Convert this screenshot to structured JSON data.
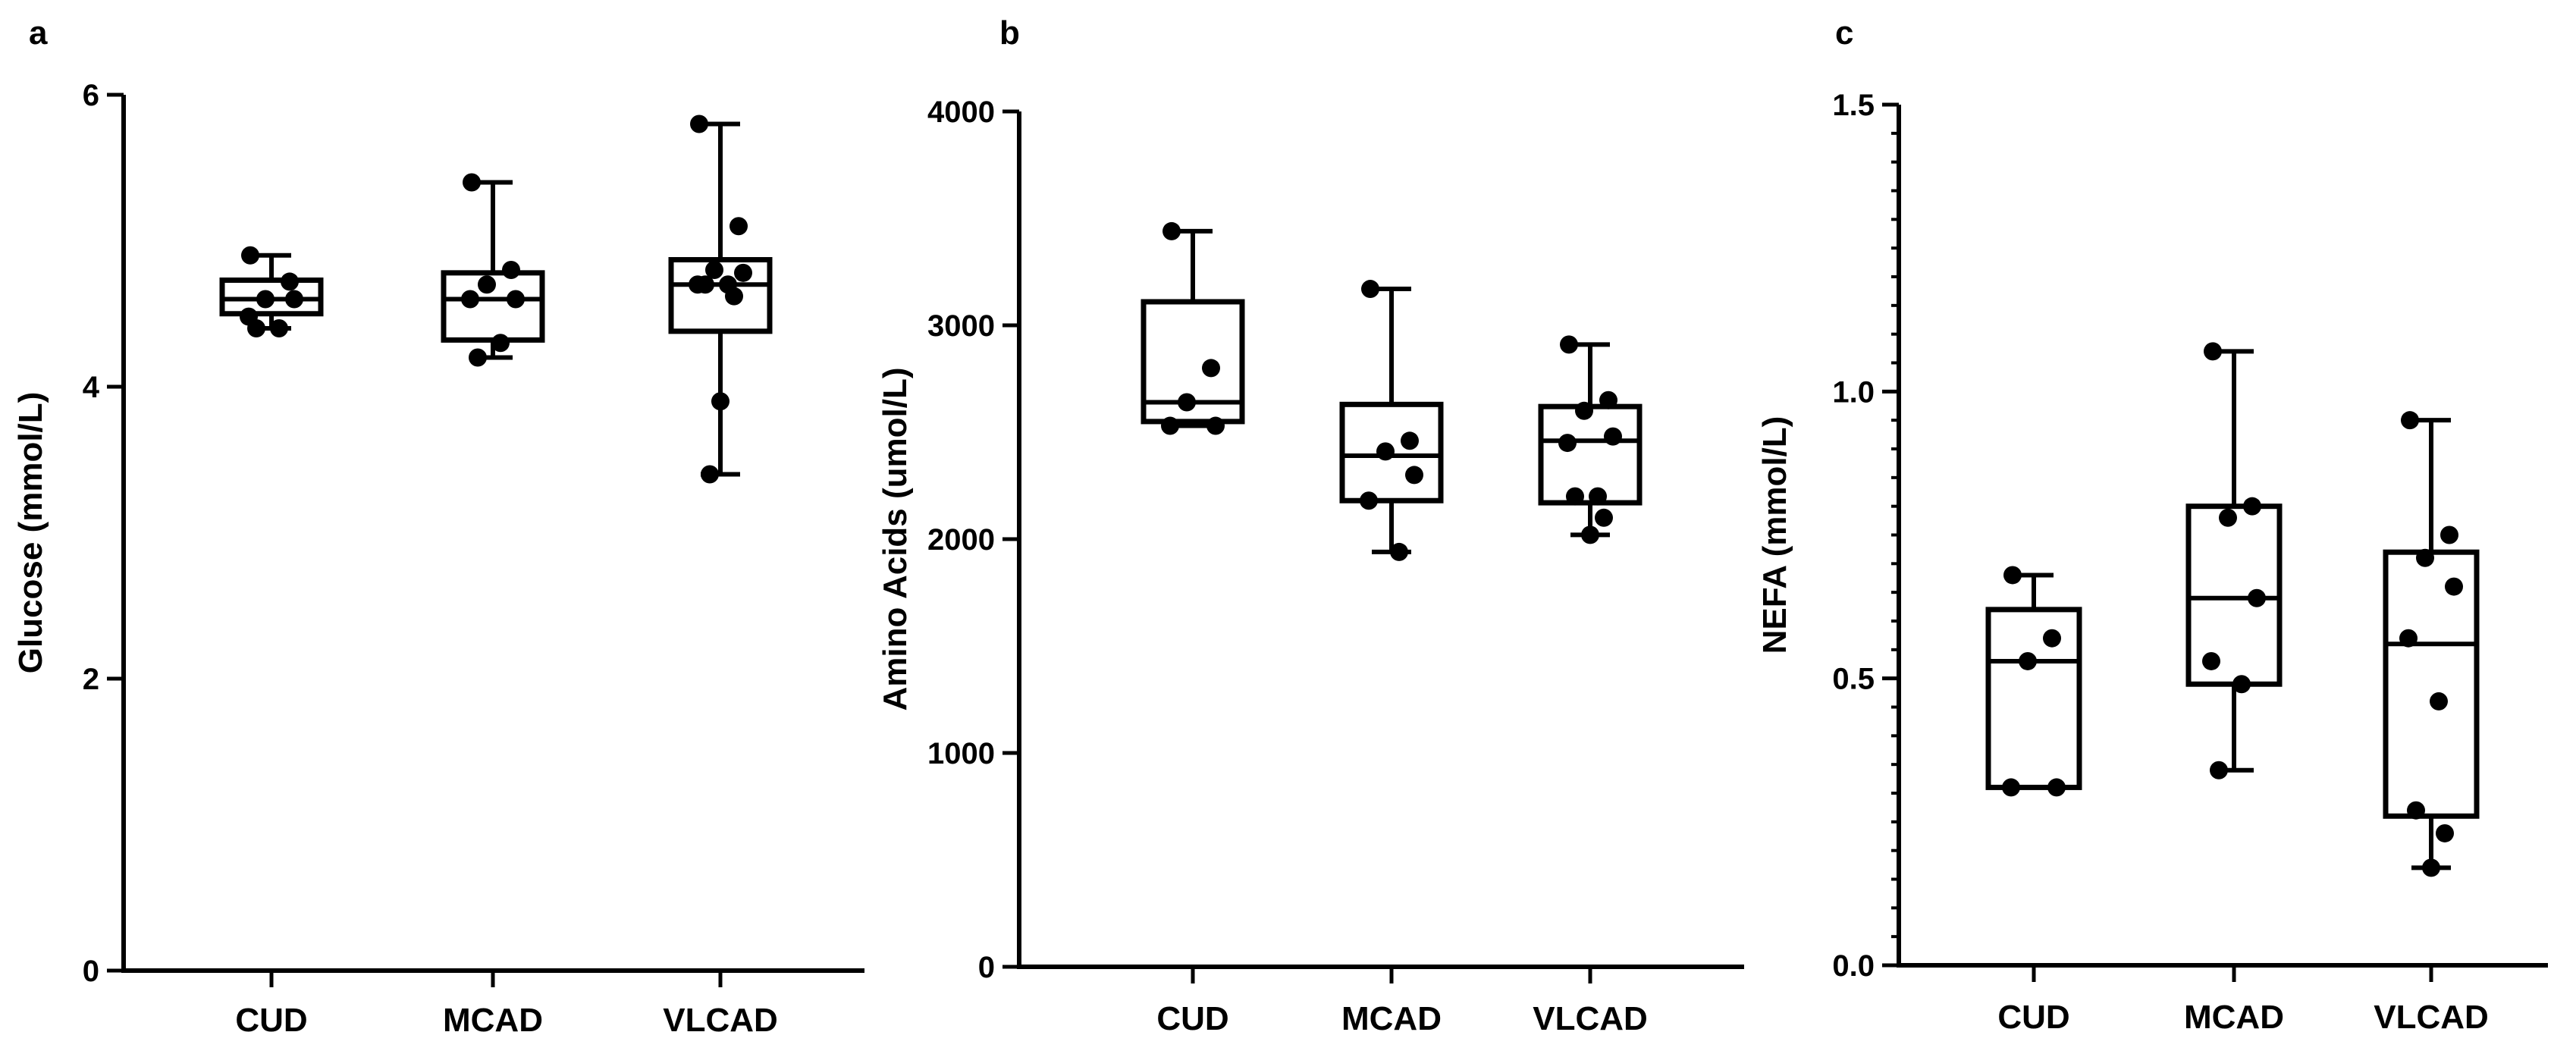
{
  "figure": {
    "background": "#ffffff",
    "ink": "#000000"
  },
  "chart_data": [
    {
      "panel": "a",
      "type": "box",
      "ylabel": "Glucose (mmol/L)",
      "ylim": [
        0,
        6
      ],
      "yticks": [
        0,
        2,
        4,
        6
      ],
      "yticks_display": [
        "0",
        "2",
        "4",
        "6"
      ],
      "minor_ticks": false,
      "categories": [
        "CUD",
        "MCAD",
        "VLCAD"
      ],
      "groups": [
        {
          "name": "CUD",
          "min": 4.4,
          "q1": 4.5,
          "median": 4.6,
          "q3": 4.73,
          "max": 4.9,
          "points": [
            4.9,
            4.72,
            4.6,
            4.6,
            4.48,
            4.4,
            4.4
          ]
        },
        {
          "name": "MCAD",
          "min": 4.2,
          "q1": 4.32,
          "median": 4.6,
          "q3": 4.78,
          "max": 5.4,
          "points": [
            5.4,
            4.8,
            4.7,
            4.6,
            4.6,
            4.3,
            4.2
          ]
        },
        {
          "name": "VLCAD",
          "min": 3.4,
          "q1": 4.38,
          "median": 4.7,
          "q3": 4.87,
          "max": 5.8,
          "points": [
            5.8,
            5.1,
            4.8,
            4.78,
            4.7,
            4.7,
            4.7,
            4.62,
            3.9,
            3.4
          ]
        }
      ]
    },
    {
      "panel": "b",
      "type": "box",
      "ylabel": "Amino Acids (umol/L)",
      "ylim": [
        0,
        4000
      ],
      "yticks": [
        0,
        1000,
        2000,
        3000,
        4000
      ],
      "yticks_display": [
        "0",
        "1000",
        "2000",
        "3000",
        "4000"
      ],
      "minor_ticks": false,
      "categories": [
        "CUD",
        "MCAD",
        "VLCAD"
      ],
      "groups": [
        {
          "name": "CUD",
          "min": 2530,
          "q1": 2550,
          "median": 2640,
          "q3": 3110,
          "max": 3440,
          "points": [
            3440,
            2800,
            2640,
            2530,
            2530
          ]
        },
        {
          "name": "MCAD",
          "min": 1940,
          "q1": 2180,
          "median": 2390,
          "q3": 2630,
          "max": 3170,
          "points": [
            3170,
            2460,
            2410,
            2300,
            2180,
            1940
          ]
        },
        {
          "name": "VLCAD",
          "min": 2020,
          "q1": 2170,
          "median": 2460,
          "q3": 2620,
          "max": 2910,
          "points": [
            2910,
            2650,
            2600,
            2480,
            2450,
            2200,
            2200,
            2100,
            2020
          ]
        }
      ]
    },
    {
      "panel": "c",
      "type": "box",
      "ylabel": "NEFA (mmol/L)",
      "ylim": [
        0,
        1.5
      ],
      "yticks": [
        0,
        0.5,
        1.0,
        1.5
      ],
      "yticks_display": [
        "0.0",
        "0.5",
        "1.0",
        "1.5"
      ],
      "minor_tick_step": 0.05,
      "minor_ticks": true,
      "categories": [
        "CUD",
        "MCAD",
        "VLCAD"
      ],
      "groups": [
        {
          "name": "CUD",
          "min": 0.31,
          "q1": 0.31,
          "median": 0.53,
          "q3": 0.62,
          "max": 0.68,
          "points": [
            0.68,
            0.57,
            0.53,
            0.31,
            0.31
          ]
        },
        {
          "name": "MCAD",
          "min": 0.34,
          "q1": 0.49,
          "median": 0.64,
          "q3": 0.8,
          "max": 1.07,
          "points": [
            1.07,
            0.8,
            0.78,
            0.64,
            0.53,
            0.49,
            0.34
          ]
        },
        {
          "name": "VLCAD",
          "min": 0.17,
          "q1": 0.26,
          "median": 0.56,
          "q3": 0.72,
          "max": 0.95,
          "points": [
            0.95,
            0.75,
            0.71,
            0.66,
            0.57,
            0.46,
            0.27,
            0.23,
            0.17
          ]
        }
      ]
    }
  ]
}
